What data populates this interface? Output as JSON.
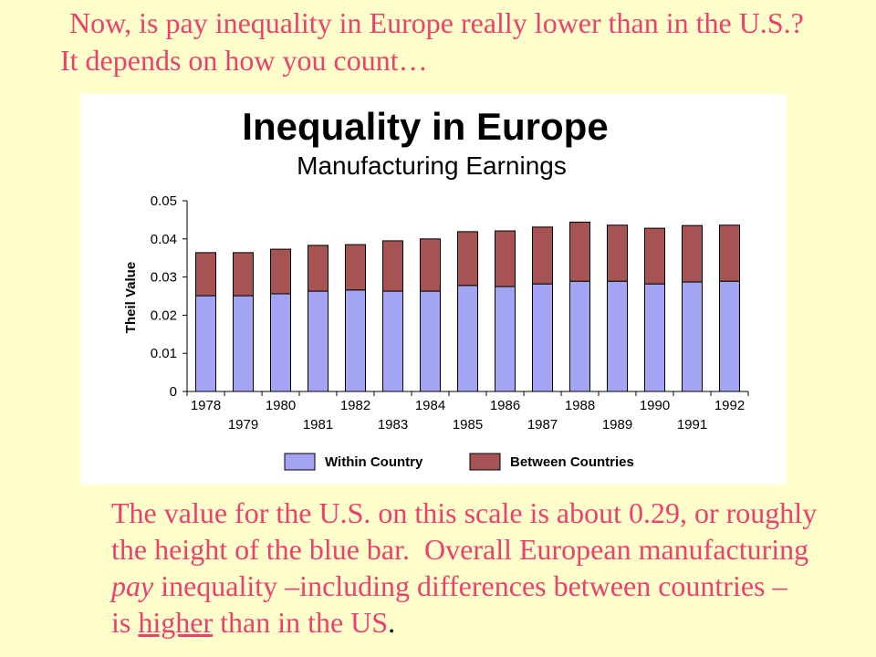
{
  "slide": {
    "heading_line1": "Now, is pay inequality in Europe really lower than in the U.S.?",
    "heading_line2": "It depends on how you count…",
    "body": {
      "line1": "The value for the U.S. on this scale is about 0.29, or roughly",
      "line2": "the height of the blue bar.  Overall European manufacturing",
      "line3_italic": "pay",
      "line3_rest": " inequality –including differences between countries –",
      "line4_start": "is ",
      "line4_underlined": "higher",
      "line4_rest": " than in the US",
      "line4_period": "."
    }
  },
  "colors": {
    "background": "#FFFFCC",
    "text": "#EF3F6E",
    "chart_background": "#FFFFFF"
  },
  "chart_data": {
    "type": "bar",
    "stacked": true,
    "title": "Inequality in Europe",
    "subtitle": "Manufacturing Earnings",
    "xlabel": "",
    "ylabel": "Theil Value",
    "categories": [
      "1978",
      "1979",
      "1980",
      "1981",
      "1982",
      "1983",
      "1984",
      "1985",
      "1986",
      "1987",
      "1988",
      "1989",
      "1990",
      "1991",
      "1992"
    ],
    "series": [
      {
        "name": "Within Country",
        "color": "#A4A4F4",
        "values": [
          0.0251,
          0.0251,
          0.0256,
          0.0263,
          0.0266,
          0.0263,
          0.0263,
          0.0278,
          0.0275,
          0.0282,
          0.0289,
          0.0289,
          0.0282,
          0.0287,
          0.0289
        ]
      },
      {
        "name": "Between Countries",
        "color": "#A65353",
        "values": [
          0.0113,
          0.0113,
          0.0117,
          0.012,
          0.0119,
          0.0132,
          0.0137,
          0.0141,
          0.0146,
          0.0149,
          0.0155,
          0.0147,
          0.0146,
          0.0148,
          0.0147
        ]
      }
    ],
    "ylim": [
      0,
      0.05
    ],
    "yticks": [
      "0",
      "0.01",
      "0.02",
      "0.03",
      "0.04",
      "0.05"
    ],
    "grid": false,
    "legend_position": "bottom"
  }
}
